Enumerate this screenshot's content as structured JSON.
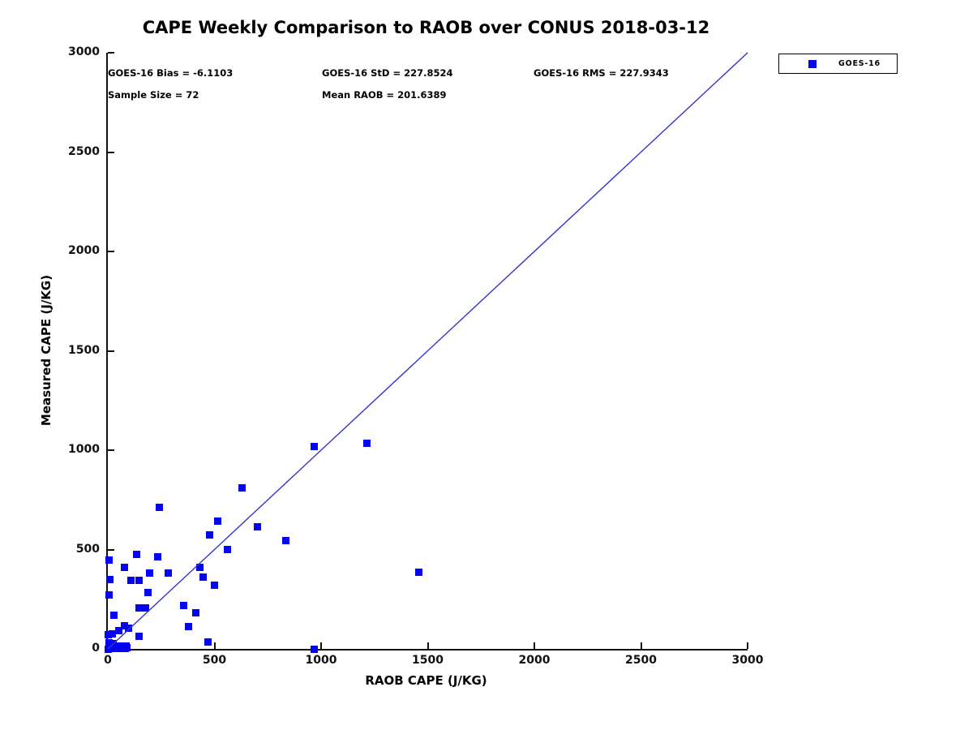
{
  "chart_data": {
    "type": "scatter",
    "title": "CAPE Weekly Comparison to RAOB over CONUS 2018-03-12",
    "xlabel": "RAOB CAPE (J/KG)",
    "ylabel": "Measured CAPE (J/KG)",
    "xlim": [
      0,
      3000
    ],
    "ylim": [
      0,
      3000
    ],
    "x_ticks": [
      0,
      500,
      1000,
      1500,
      2000,
      2500,
      3000
    ],
    "y_ticks": [
      0,
      500,
      1000,
      1500,
      2000,
      2500,
      3000
    ],
    "grid": false,
    "marker_color": "#0404ee",
    "line_color": "#3434cc",
    "annotations": [
      {
        "text": "GOES-16 Bias = -6.1103"
      },
      {
        "text": "GOES-16 StD = 227.8524"
      },
      {
        "text": "GOES-16 RMS = 227.9343"
      },
      {
        "text": "Sample Size = 72"
      },
      {
        "text": "Mean RAOB = 201.6389"
      }
    ],
    "legend": {
      "position": "outside-top-right",
      "entries": [
        {
          "label": "GOES-16",
          "marker": "filled-square",
          "color": "#0404ee"
        }
      ]
    },
    "reference_line": {
      "label": "1:1 line",
      "from": [
        0,
        0
      ],
      "to": [
        3000,
        3000
      ],
      "color": "#3434cc"
    },
    "series": [
      {
        "name": "GOES-16",
        "type": "scatter",
        "marker": "square",
        "color": "#0404ee",
        "sample_size": 72,
        "points": [
          [
            5,
            445
          ],
          [
            135,
            475
          ],
          [
            232,
            462
          ],
          [
            77,
            410
          ],
          [
            10,
            349
          ],
          [
            109,
            344
          ],
          [
            147,
            344
          ],
          [
            194,
            383
          ],
          [
            283,
            383
          ],
          [
            5,
            273
          ],
          [
            190,
            284
          ],
          [
            145,
            205
          ],
          [
            175,
            205
          ],
          [
            30,
            170
          ],
          [
            357,
            220
          ],
          [
            380,
            113
          ],
          [
            241,
            712
          ],
          [
            630,
            810
          ],
          [
            515,
            643
          ],
          [
            700,
            615
          ],
          [
            478,
            573
          ],
          [
            835,
            543
          ],
          [
            560,
            502
          ],
          [
            433,
            410
          ],
          [
            446,
            360
          ],
          [
            500,
            321
          ],
          [
            414,
            180
          ],
          [
            471,
            33
          ],
          [
            968,
            0
          ],
          [
            966,
            1018
          ],
          [
            1213,
            1034
          ],
          [
            1460,
            385
          ],
          [
            79,
            117
          ],
          [
            98,
            103
          ],
          [
            53,
            90
          ],
          [
            22,
            77
          ],
          [
            3,
            70
          ],
          [
            145,
            65
          ],
          [
            5,
            30
          ],
          [
            25,
            25
          ],
          [
            8,
            15
          ],
          [
            28,
            14
          ],
          [
            48,
            16
          ],
          [
            68,
            15
          ],
          [
            85,
            14
          ],
          [
            10,
            4
          ],
          [
            20,
            2
          ],
          [
            30,
            8
          ],
          [
            40,
            3
          ],
          [
            50,
            6
          ],
          [
            60,
            2
          ],
          [
            70,
            8
          ],
          [
            80,
            3
          ],
          [
            88,
            5
          ],
          [
            0,
            0
          ]
        ]
      }
    ]
  }
}
